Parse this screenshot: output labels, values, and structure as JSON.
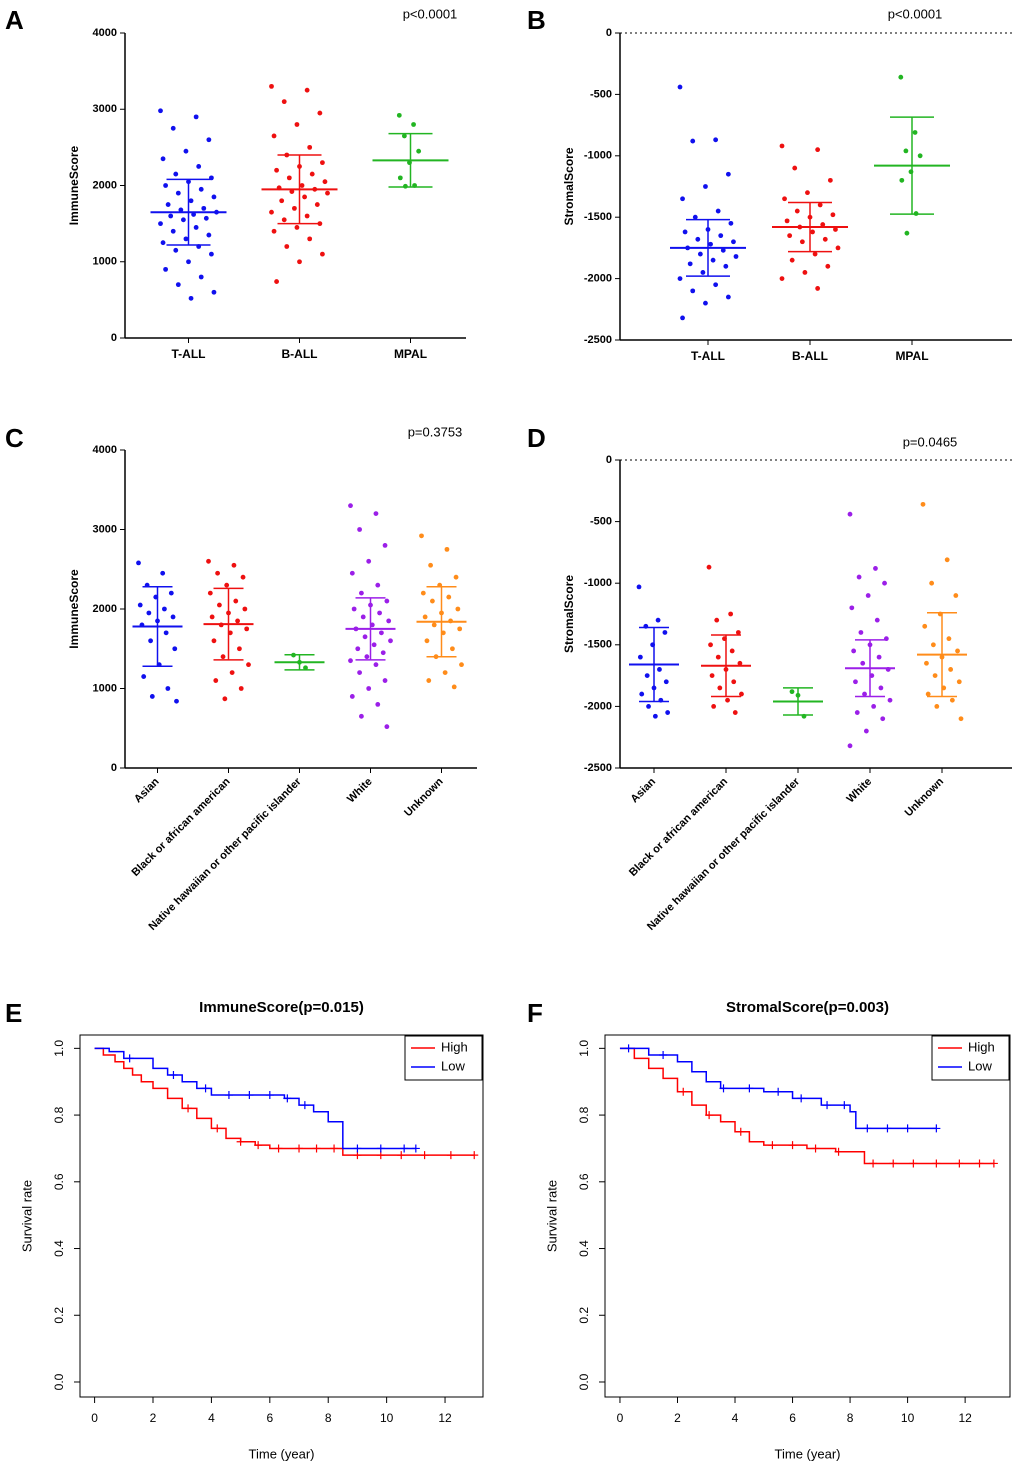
{
  "chart_data": [
    {
      "type": "dotplot",
      "panel": "A",
      "ylabel": "ImmuneScore",
      "annotation": "p<0.0001",
      "categories": [
        "T-ALL",
        "B-ALL",
        "MPAL"
      ],
      "ylim": [
        0,
        4000
      ],
      "yticks": [
        0,
        1000,
        2000,
        3000,
        4000
      ],
      "zero_line": false,
      "groups": [
        {
          "color": "#1010ee",
          "mean": 1650,
          "sd": 430,
          "values": [
            2980,
            2900,
            2750,
            2600,
            2450,
            2350,
            2250,
            2150,
            2100,
            2050,
            2000,
            1950,
            1900,
            1850,
            1800,
            1750,
            1700,
            1680,
            1650,
            1620,
            1600,
            1570,
            1550,
            1500,
            1450,
            1400,
            1350,
            1300,
            1250,
            1200,
            1150,
            1100,
            1000,
            900,
            800,
            700,
            600,
            520
          ]
        },
        {
          "color": "#ee1010",
          "mean": 1950,
          "sd": 450,
          "values": [
            3300,
            3250,
            3100,
            2950,
            2800,
            2650,
            2500,
            2400,
            2300,
            2250,
            2200,
            2150,
            2100,
            2050,
            2000,
            1970,
            1950,
            1920,
            1900,
            1850,
            1800,
            1750,
            1700,
            1650,
            1600,
            1550,
            1500,
            1450,
            1400,
            1300,
            1200,
            1100,
            1000,
            740
          ]
        },
        {
          "color": "#22b522",
          "mean": 2330,
          "sd": 350,
          "values": [
            2920,
            2800,
            2650,
            2450,
            2300,
            2100,
            2000,
            1990
          ]
        }
      ]
    },
    {
      "type": "dotplot",
      "panel": "B",
      "ylabel": "StromalScore",
      "annotation": "p<0.0001",
      "categories": [
        "T-ALL",
        "B-ALL",
        "MPAL"
      ],
      "ylim": [
        -2500,
        0
      ],
      "yticks": [
        -2500,
        -2000,
        -1500,
        -1000,
        -500,
        0
      ],
      "zero_line": true,
      "groups": [
        {
          "color": "#1010ee",
          "mean": -1750,
          "sd": 230,
          "values": [
            -440,
            -870,
            -880,
            -1150,
            -1250,
            -1350,
            -1450,
            -1500,
            -1550,
            -1600,
            -1620,
            -1650,
            -1680,
            -1700,
            -1720,
            -1750,
            -1770,
            -1800,
            -1820,
            -1850,
            -1880,
            -1900,
            -1950,
            -2000,
            -2050,
            -2100,
            -2150,
            -2200,
            -2320
          ]
        },
        {
          "color": "#ee1010",
          "mean": -1580,
          "sd": 200,
          "values": [
            -920,
            -950,
            -1100,
            -1200,
            -1300,
            -1350,
            -1400,
            -1450,
            -1480,
            -1500,
            -1530,
            -1560,
            -1580,
            -1600,
            -1620,
            -1650,
            -1680,
            -1700,
            -1750,
            -1800,
            -1850,
            -1900,
            -1950,
            -2000,
            -2080
          ]
        },
        {
          "color": "#22b522",
          "mean": -1080,
          "sd": 395,
          "values": [
            -360,
            -810,
            -960,
            -1000,
            -1130,
            -1200,
            -1470,
            -1630
          ]
        }
      ]
    },
    {
      "type": "dotplot",
      "panel": "C",
      "ylabel": "ImmuneScore",
      "annotation": "p=0.3753",
      "categories": [
        "Asian",
        "Black or african american",
        "Native hawaiian or other pacific islander",
        "White",
        "Unknown"
      ],
      "ylim": [
        0,
        4000
      ],
      "yticks": [
        0,
        1000,
        2000,
        3000,
        4000
      ],
      "zero_line": false,
      "groups": [
        {
          "color": "#1010ee",
          "mean": 1780,
          "sd": 500,
          "values": [
            2580,
            2450,
            2300,
            2200,
            2150,
            2050,
            2000,
            1950,
            1900,
            1850,
            1800,
            1700,
            1600,
            1500,
            1300,
            1150,
            1000,
            900,
            840
          ]
        },
        {
          "color": "#ee1010",
          "mean": 1810,
          "sd": 450,
          "values": [
            2600,
            2550,
            2450,
            2400,
            2300,
            2200,
            2100,
            2050,
            2000,
            1950,
            1900,
            1850,
            1800,
            1750,
            1700,
            1600,
            1500,
            1400,
            1300,
            1200,
            1100,
            1000,
            870
          ]
        },
        {
          "color": "#22b522",
          "mean": 1330,
          "sd": 95,
          "values": [
            1420,
            1330,
            1260
          ]
        },
        {
          "color": "#9b1fe8",
          "mean": 1750,
          "sd": 390,
          "values": [
            3300,
            3200,
            3000,
            2800,
            2600,
            2450,
            2300,
            2200,
            2100,
            2050,
            2000,
            1950,
            1900,
            1850,
            1800,
            1750,
            1700,
            1650,
            1600,
            1550,
            1500,
            1450,
            1400,
            1350,
            1300,
            1200,
            1100,
            1000,
            900,
            800,
            650,
            520
          ]
        },
        {
          "color": "#ff8c1a",
          "mean": 1840,
          "sd": 440,
          "values": [
            2920,
            2750,
            2550,
            2400,
            2300,
            2200,
            2150,
            2100,
            2000,
            1950,
            1900,
            1850,
            1800,
            1750,
            1700,
            1600,
            1500,
            1400,
            1300,
            1200,
            1100,
            1020
          ]
        }
      ]
    },
    {
      "type": "dotplot",
      "panel": "D",
      "ylabel": "StromalScore",
      "annotation": "p=0.0465",
      "categories": [
        "Asian",
        "Black or african american",
        "Native hawaiian or other pacific islander",
        "White",
        "Unknown"
      ],
      "ylim": [
        -2500,
        0
      ],
      "yticks": [
        -2500,
        -2000,
        -1500,
        -1000,
        -500,
        0
      ],
      "zero_line": true,
      "groups": [
        {
          "color": "#1010ee",
          "mean": -1660,
          "sd": 300,
          "values": [
            -1030,
            -1300,
            -1350,
            -1400,
            -1500,
            -1600,
            -1700,
            -1750,
            -1800,
            -1850,
            -1900,
            -1950,
            -2000,
            -2050,
            -2080
          ]
        },
        {
          "color": "#ee1010",
          "mean": -1670,
          "sd": 250,
          "values": [
            -870,
            -1250,
            -1300,
            -1400,
            -1450,
            -1500,
            -1550,
            -1600,
            -1650,
            -1700,
            -1750,
            -1800,
            -1850,
            -1900,
            -1950,
            -2000,
            -2050
          ]
        },
        {
          "color": "#22b522",
          "mean": -1960,
          "sd": 110,
          "values": [
            -1880,
            -1910,
            -2080
          ]
        },
        {
          "color": "#9b1fe8",
          "mean": -1690,
          "sd": 230,
          "values": [
            -440,
            -880,
            -950,
            -1000,
            -1100,
            -1200,
            -1300,
            -1400,
            -1450,
            -1500,
            -1550,
            -1600,
            -1650,
            -1700,
            -1750,
            -1800,
            -1850,
            -1900,
            -1950,
            -2000,
            -2050,
            -2100,
            -2200,
            -2320
          ]
        },
        {
          "color": "#ff8c1a",
          "mean": -1580,
          "sd": 340,
          "values": [
            -360,
            -810,
            -1000,
            -1100,
            -1250,
            -1350,
            -1450,
            -1500,
            -1550,
            -1600,
            -1650,
            -1700,
            -1750,
            -1800,
            -1850,
            -1900,
            -1950,
            -2000,
            -2100
          ]
        }
      ]
    },
    {
      "type": "survival",
      "panel": "E",
      "title": "ImmuneScore(p=0.015)",
      "xlabel": "Time (year)",
      "ylabel": "Survival rate",
      "legend": "topright",
      "xlim": [
        -0.5,
        13.3
      ],
      "xticks": [
        0,
        2,
        4,
        6,
        8,
        10,
        12
      ],
      "ylim": [
        -0.045,
        1.04
      ],
      "yticks": [
        {
          "value": 0,
          "label": "0.0"
        },
        {
          "value": 0.2,
          "label": "0.2"
        },
        {
          "value": 0.4,
          "label": "0.4"
        },
        {
          "value": 0.6,
          "label": "0.6"
        },
        {
          "value": 0.8,
          "label": "0.8"
        },
        {
          "value": 1,
          "label": "1.0"
        }
      ],
      "series": [
        {
          "name": "High",
          "color": "#ff0000",
          "x": [
            0,
            0.3,
            0.7,
            1.0,
            1.3,
            1.6,
            2.0,
            2.5,
            3.0,
            3.5,
            4.0,
            4.5,
            5.0,
            5.5,
            6.0,
            8.5,
            13.0
          ],
          "values": [
            1.0,
            0.98,
            0.96,
            0.94,
            0.92,
            0.9,
            0.88,
            0.85,
            0.82,
            0.79,
            0.76,
            0.73,
            0.72,
            0.71,
            0.7,
            0.68,
            0.68
          ],
          "censor_x": [
            3.2,
            4.2,
            5.0,
            5.6,
            6.3,
            7.0,
            7.6,
            8.2,
            9.0,
            9.8,
            10.5,
            11.3,
            12.2,
            13.0
          ],
          "censor_y": [
            0.82,
            0.76,
            0.72,
            0.71,
            0.7,
            0.7,
            0.7,
            0.7,
            0.68,
            0.68,
            0.68,
            0.68,
            0.68,
            0.68
          ]
        },
        {
          "name": "Low",
          "color": "#0000ff",
          "x": [
            0,
            0.5,
            1.0,
            2.0,
            2.5,
            3.0,
            3.5,
            4.0,
            6.5,
            7.0,
            7.5,
            8.0,
            8.5,
            11.0
          ],
          "values": [
            1.0,
            0.99,
            0.97,
            0.94,
            0.92,
            0.9,
            0.88,
            0.86,
            0.85,
            0.83,
            0.81,
            0.78,
            0.7,
            0.7
          ],
          "censor_x": [
            1.2,
            2.7,
            3.8,
            4.6,
            5.3,
            6.0,
            6.6,
            7.2,
            9.0,
            9.8,
            10.6,
            11.0
          ],
          "censor_y": [
            0.97,
            0.92,
            0.88,
            0.86,
            0.86,
            0.86,
            0.85,
            0.83,
            0.7,
            0.7,
            0.7,
            0.7
          ]
        }
      ]
    },
    {
      "type": "survival",
      "panel": "F",
      "title": "StromalScore(p=0.003)",
      "xlabel": "Time (year)",
      "ylabel": "Survival rate",
      "legend": "topright",
      "xlim": [
        -0.52,
        13.56
      ],
      "xticks": [
        0,
        2,
        4,
        6,
        8,
        10,
        12
      ],
      "ylim": [
        -0.045,
        1.04
      ],
      "yticks": [
        {
          "value": 0,
          "label": "0.0"
        },
        {
          "value": 0.2,
          "label": "0.2"
        },
        {
          "value": 0.4,
          "label": "0.4"
        },
        {
          "value": 0.6,
          "label": "0.6"
        },
        {
          "value": 0.8,
          "label": "0.8"
        },
        {
          "value": 1,
          "label": "1.0"
        }
      ],
      "series": [
        {
          "name": "High",
          "color": "#ff0000",
          "x": [
            0,
            0.5,
            1.0,
            1.5,
            2.0,
            2.5,
            3.0,
            3.5,
            4.0,
            4.5,
            5.0,
            6.5,
            7.5,
            8.5,
            13.0
          ],
          "values": [
            1.0,
            0.97,
            0.94,
            0.91,
            0.87,
            0.83,
            0.8,
            0.78,
            0.75,
            0.72,
            0.71,
            0.7,
            0.69,
            0.655,
            0.655
          ],
          "censor_x": [
            2.2,
            3.1,
            4.2,
            5.3,
            6.0,
            6.8,
            7.6,
            8.8,
            9.5,
            10.2,
            11.0,
            11.8,
            12.5,
            13.0
          ],
          "censor_y": [
            0.87,
            0.8,
            0.75,
            0.71,
            0.71,
            0.7,
            0.69,
            0.655,
            0.655,
            0.655,
            0.655,
            0.655,
            0.655,
            0.655
          ]
        },
        {
          "name": "Low",
          "color": "#0000ff",
          "x": [
            0,
            1.0,
            2.0,
            2.5,
            3.0,
            3.5,
            5.0,
            6.0,
            7.0,
            8.0,
            8.2,
            11.0
          ],
          "values": [
            1.0,
            0.98,
            0.96,
            0.93,
            0.9,
            0.88,
            0.87,
            0.85,
            0.83,
            0.81,
            0.76,
            0.76
          ],
          "censor_x": [
            0.3,
            1.5,
            3.6,
            4.5,
            5.5,
            6.3,
            7.2,
            7.8,
            8.6,
            9.3,
            10.0,
            11.0
          ],
          "censor_y": [
            1.0,
            0.98,
            0.88,
            0.88,
            0.87,
            0.85,
            0.83,
            0.83,
            0.76,
            0.76,
            0.76,
            0.76
          ]
        }
      ]
    }
  ]
}
